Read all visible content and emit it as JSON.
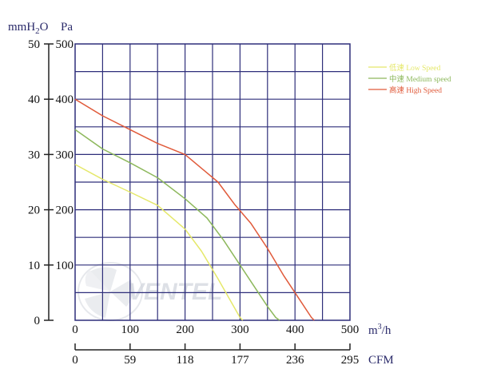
{
  "chart_data": {
    "type": "line",
    "x": {
      "label": "m3/h",
      "unit_text": "m",
      "unit_sup": "3",
      "unit_suffix": "/h",
      "range": [
        0,
        500
      ],
      "ticks": [
        "0",
        "100",
        "200",
        "300",
        "400",
        "500"
      ]
    },
    "x2": {
      "label": "CFM",
      "ticks": [
        "0",
        "59",
        "118",
        "177",
        "236",
        "295"
      ]
    },
    "y_left": {
      "label": "mmH2O",
      "range": [
        0,
        50
      ],
      "ticks": [
        "0",
        "10",
        "20",
        "30",
        "40",
        "50"
      ]
    },
    "y_right": {
      "label": "Pa",
      "range": [
        0,
        500
      ],
      "ticks": [
        "100",
        "200",
        "300",
        "400",
        "500"
      ]
    },
    "grid": true,
    "legend": "top-right",
    "watermark": "VENTEL",
    "series": [
      {
        "name": "低速 Low Speed",
        "color": "#e5e86a",
        "x": [
          0,
          50,
          100,
          150,
          200,
          230,
          260,
          280,
          300,
          305
        ],
        "y": [
          282,
          255,
          232,
          208,
          165,
          125,
          75,
          40,
          5,
          0
        ]
      },
      {
        "name": "中速 Medium speed",
        "color": "#8db85c",
        "x": [
          0,
          50,
          100,
          150,
          200,
          240,
          270,
          300,
          330,
          350,
          365,
          372
        ],
        "y": [
          345,
          310,
          285,
          258,
          220,
          185,
          145,
          100,
          55,
          25,
          5,
          0
        ]
      },
      {
        "name": "高速 High Speed",
        "color": "#e05a3a",
        "x": [
          0,
          50,
          100,
          150,
          200,
          230,
          260,
          290,
          320,
          350,
          380,
          410,
          430,
          435
        ],
        "y": [
          400,
          370,
          345,
          320,
          300,
          275,
          250,
          210,
          175,
          130,
          80,
          35,
          5,
          0
        ]
      }
    ]
  }
}
